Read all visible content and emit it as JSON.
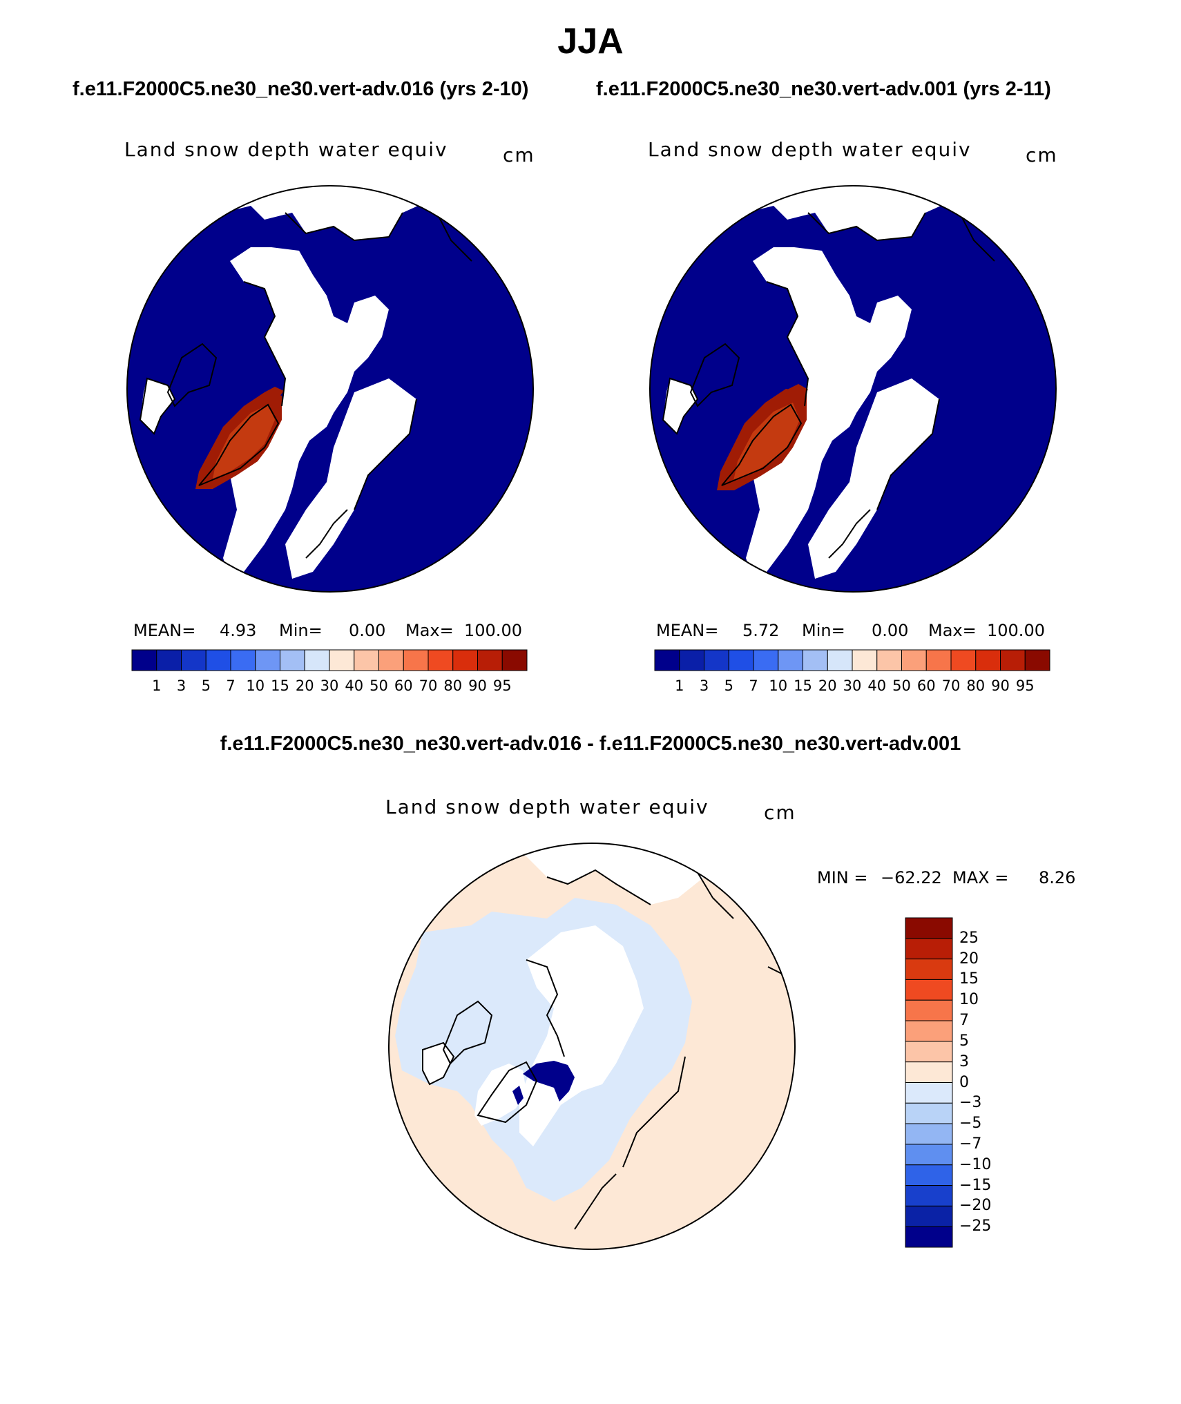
{
  "figure": {
    "season": "JJA",
    "case_a_header": "f.e11.F2000C5.ne30_ne30.vert-adv.016 (yrs 2-10)",
    "case_b_header": "f.e11.F2000C5.ne30_ne30.vert-adv.001 (yrs 2-11)",
    "diff_header": "f.e11.F2000C5.ne30_ne30.vert-adv.016 - f.e11.F2000C5.ne30_ne30.vert-adv.001"
  },
  "panels": {
    "a": {
      "title": "Land snow depth water equiv",
      "units": "cm",
      "mean_label": "MEAN=",
      "mean_value": "4.93",
      "min_label": "Min=",
      "min_value": "0.00",
      "max_label": "Max=",
      "max_value": "100.00"
    },
    "b": {
      "title": "Land snow depth water equiv",
      "units": "cm",
      "mean_label": "MEAN=",
      "mean_value": "5.72",
      "min_label": "Min=",
      "min_value": "0.00",
      "max_label": "Max=",
      "max_value": "100.00"
    },
    "diff": {
      "title": "Land snow depth water equiv",
      "units": "cm",
      "min_label": "MIN =",
      "min_value": "−62.22",
      "max_label": "MAX =",
      "max_value": "8.26"
    }
  },
  "colorbar_main": {
    "colors": [
      "#00008b",
      "#0a1fa8",
      "#1436c8",
      "#1f4fe6",
      "#3a6cf3",
      "#6e96f5",
      "#a3bff5",
      "#d6e6fa",
      "#fde8d6",
      "#fcc5a8",
      "#fba07a",
      "#f7754a",
      "#ef4a21",
      "#d92e0c",
      "#b81e06",
      "#8a0a00"
    ],
    "labels": [
      "1",
      "3",
      "5",
      "7",
      "10",
      "15",
      "20",
      "30",
      "40",
      "50",
      "60",
      "70",
      "80",
      "90",
      "95"
    ]
  },
  "colorbar_diff": {
    "colors": [
      "#8a0a00",
      "#b81e06",
      "#d93a10",
      "#ef4a21",
      "#f7754a",
      "#fba07a",
      "#fcc5a8",
      "#fde8d6",
      "#dbe9fb",
      "#b9d3f7",
      "#93b6f3",
      "#5f8ff0",
      "#2f63e8",
      "#1840cc",
      "#0a22a6",
      "#00008b"
    ],
    "labels": [
      "25",
      "20",
      "15",
      "10",
      "7",
      "5",
      "3",
      "0",
      "−3",
      "−5",
      "−7",
      "−10",
      "−15",
      "−20",
      "−25"
    ]
  },
  "map_colors": {
    "ocean_low": "#00008b",
    "snow_free": "#ffffff",
    "ice_sheet_high": "#a01c05",
    "ice_sheet_core": "#c43a10",
    "diff_positive_small": "#fde8d6",
    "diff_negative_small": "#dbe9fb",
    "diff_negative_large": "#00008b"
  }
}
